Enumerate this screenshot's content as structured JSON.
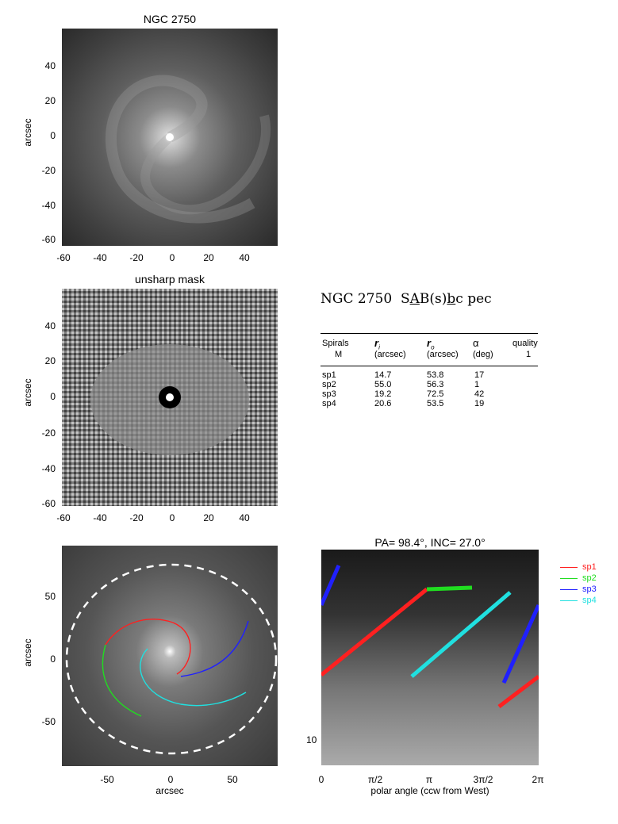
{
  "panel1": {
    "title": "NGC 2750",
    "ylabel": "arcsec",
    "xticks": [
      "-60",
      "-40",
      "-20",
      "0",
      "20",
      "40"
    ],
    "yticks": [
      "40",
      "20",
      "0",
      "-20",
      "-40",
      "-60"
    ]
  },
  "panel2": {
    "title": "unsharp mask",
    "ylabel": "arcsec",
    "xticks": [
      "-60",
      "-40",
      "-20",
      "0",
      "20",
      "40"
    ],
    "yticks": [
      "40",
      "20",
      "0",
      "-20",
      "-40",
      "-60"
    ]
  },
  "panel3": {
    "ylabel": "arcsec",
    "xlabel": "arcsec",
    "xticks": [
      "-50",
      "0",
      "50"
    ],
    "yticks": [
      "50",
      "0",
      "-50"
    ]
  },
  "panel4": {
    "title": "PA=  98.4°, INC=  27.0°",
    "xlabel": "polar angle (ccw from West)",
    "xticks": [
      "0",
      "π/2",
      "π",
      "3π/2",
      "2π"
    ],
    "yticks": [
      "10"
    ]
  },
  "galaxy_class": {
    "name": "NGC 2750",
    "pre": "S",
    "u1": "A",
    "mid": "B(s)",
    "u2": "b",
    "post": "c pec"
  },
  "table": {
    "headers": [
      "Spirals",
      "r",
      "r",
      "α",
      "quality"
    ],
    "header_subs": [
      "M",
      "i",
      "o",
      "",
      ""
    ],
    "units": [
      "M",
      "(arcsec)",
      "(arcsec)",
      "(deg)",
      "1"
    ],
    "rows": [
      [
        "sp1",
        "14.7",
        "53.8",
        "17"
      ],
      [
        "sp2",
        "55.0",
        "56.3",
        "1"
      ],
      [
        "sp3",
        "19.2",
        "72.5",
        "42"
      ],
      [
        "sp4",
        "20.6",
        "53.5",
        "19"
      ]
    ]
  },
  "legend": [
    {
      "name": "sp1",
      "color": "#ff2020"
    },
    {
      "name": "sp2",
      "color": "#20dd20"
    },
    {
      "name": "sp3",
      "color": "#2020ff"
    },
    {
      "name": "sp4",
      "color": "#20e0e0"
    }
  ]
}
